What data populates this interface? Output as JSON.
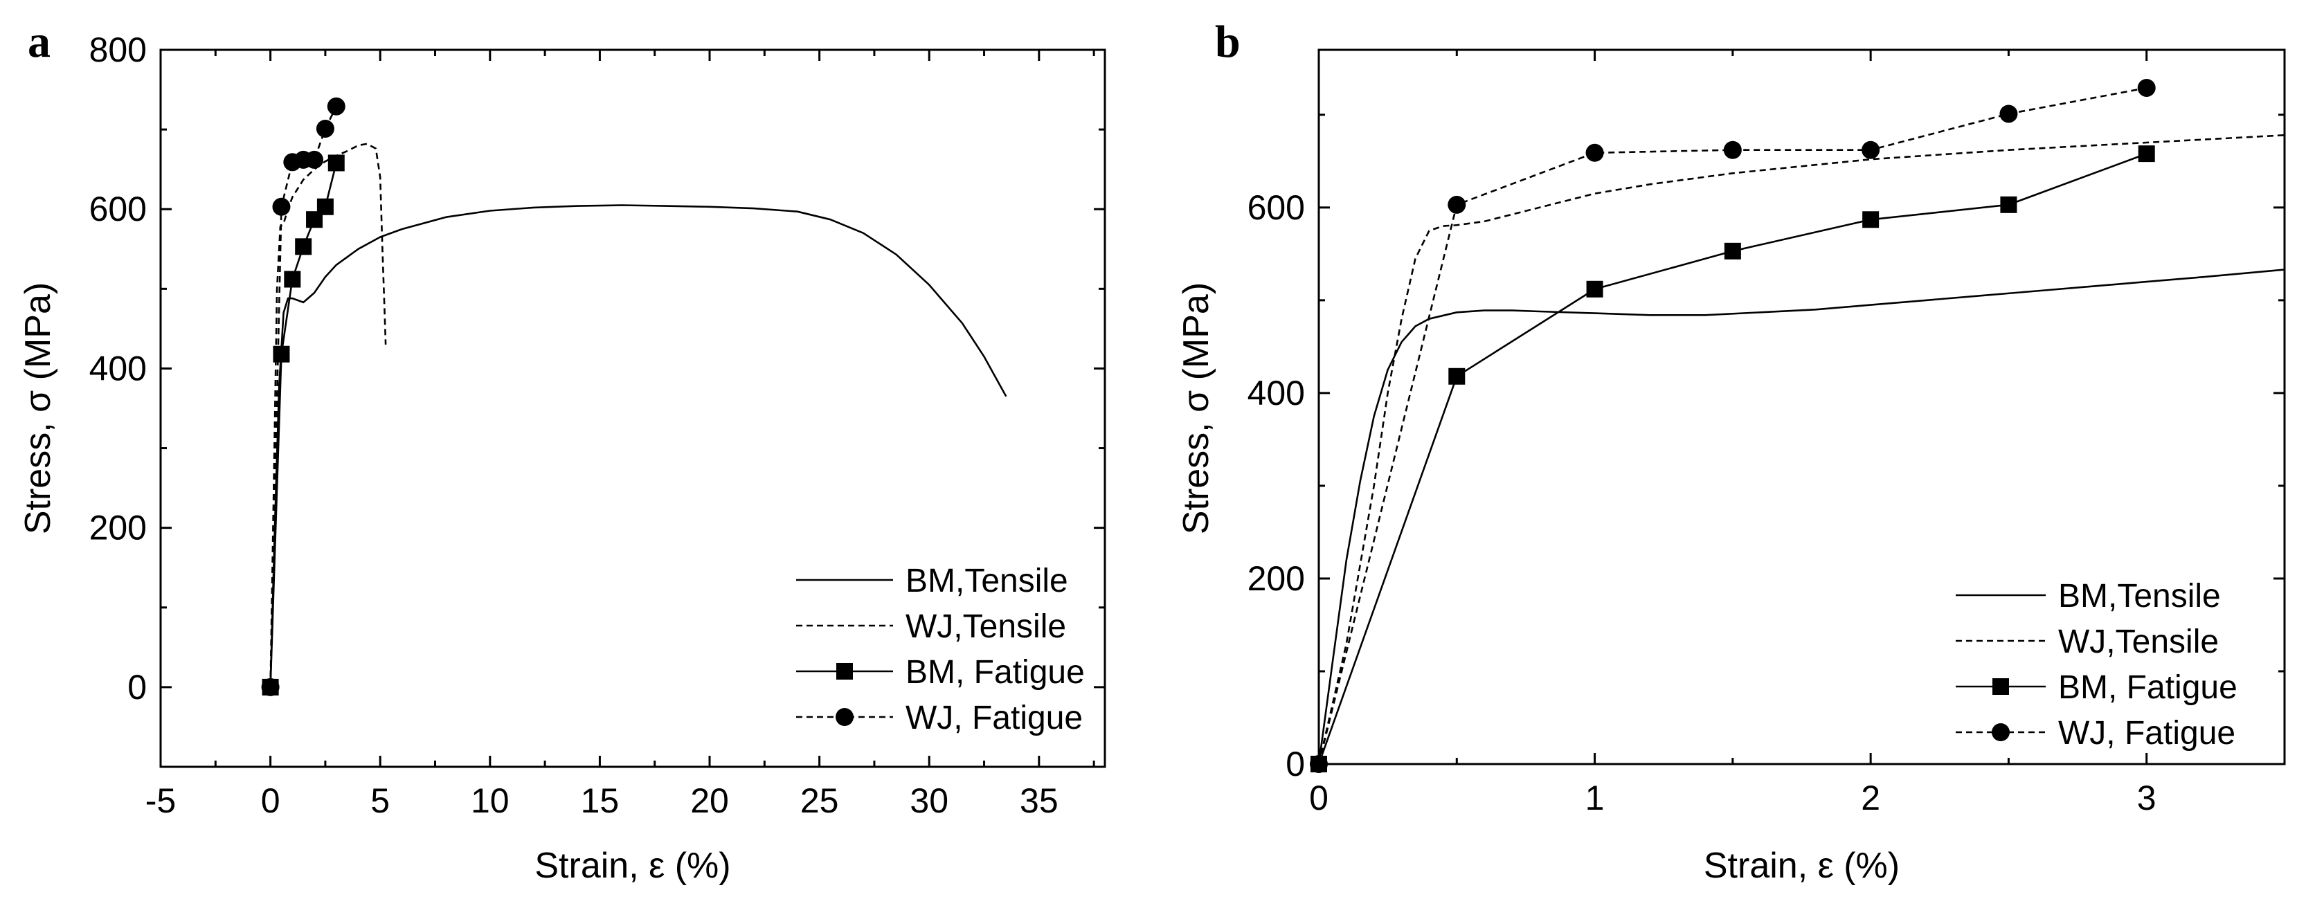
{
  "chart_data": [
    {
      "panel": "a",
      "type": "line",
      "title": "",
      "xlabel": "Strain, ε (%)",
      "ylabel": "Stress, σ (MPa)",
      "xlim": [
        -5,
        38
      ],
      "ylim": [
        -100,
        800
      ],
      "xticks": [
        -5,
        0,
        5,
        10,
        15,
        20,
        25,
        30,
        35
      ],
      "yticks": [
        0,
        200,
        400,
        600,
        800
      ],
      "legend": [
        "BM,Tensile",
        "WJ,Tensile",
        "BM, Fatigue",
        "WJ, Fatigue"
      ],
      "legend_position": "bottom-right",
      "series": [
        {
          "name": "BM,Tensile",
          "style": "solid",
          "marker": "none",
          "x": [
            0,
            0.2,
            0.4,
            0.6,
            0.8,
            1.0,
            1.2,
            1.5,
            2.0,
            2.5,
            3,
            4,
            5,
            6,
            8,
            10,
            12,
            14,
            16,
            18,
            20,
            22,
            24,
            25.5,
            27,
            28.5,
            30,
            31.5,
            32.5,
            33.5
          ],
          "y": [
            0,
            200,
            380,
            470,
            488,
            488,
            486,
            483,
            495,
            515,
            530,
            550,
            565,
            575,
            590,
            598,
            602,
            604,
            605,
            604,
            603,
            601,
            597,
            587,
            570,
            543,
            505,
            457,
            415,
            365
          ]
        },
        {
          "name": "WJ,Tensile",
          "style": "dashed",
          "marker": "none",
          "x": [
            0,
            0.15,
            0.3,
            0.45,
            0.6,
            0.8,
            1.0,
            1.5,
            2.0,
            2.5,
            3.0,
            3.5,
            4.0,
            4.4,
            4.8,
            5.0,
            5.1,
            5.2,
            5.25
          ],
          "y": [
            0,
            250,
            500,
            578,
            582,
            600,
            615,
            637,
            650,
            660,
            667,
            673,
            680,
            682,
            676,
            640,
            550,
            470,
            430
          ]
        },
        {
          "name": "BM, Fatigue",
          "style": "solid",
          "marker": "square",
          "x": [
            0,
            0.5,
            1.0,
            1.5,
            2.0,
            2.5,
            3.0
          ],
          "y": [
            0,
            418,
            512,
            553,
            587,
            603,
            658
          ]
        },
        {
          "name": "WJ, Fatigue",
          "style": "dashed",
          "marker": "circle",
          "x": [
            0,
            0.5,
            1.0,
            1.5,
            2.0,
            2.5,
            3.0
          ],
          "y": [
            0,
            603,
            659,
            662,
            662,
            701,
            729
          ]
        }
      ]
    },
    {
      "panel": "b",
      "type": "line",
      "title": "",
      "xlabel": "Strain, ε (%)",
      "ylabel": "Stress, σ (MPa)",
      "xlim": [
        0,
        3.5
      ],
      "ylim": [
        0,
        770
      ],
      "xticks": [
        0,
        1,
        2,
        3
      ],
      "yticks": [
        0,
        200,
        400,
        600
      ],
      "legend": [
        "BM,Tensile",
        "WJ,Tensile",
        "BM, Fatigue",
        "WJ, Fatigue"
      ],
      "legend_position": "bottom-right",
      "series": [
        {
          "name": "BM,Tensile",
          "style": "solid",
          "marker": "none",
          "x": [
            0,
            0.05,
            0.1,
            0.15,
            0.2,
            0.25,
            0.3,
            0.35,
            0.4,
            0.5,
            0.6,
            0.7,
            0.8,
            1.0,
            1.2,
            1.4,
            1.6,
            1.8,
            2.0,
            2.2,
            2.4,
            2.6,
            2.8,
            3.0,
            3.2,
            3.5
          ],
          "y": [
            0,
            110,
            220,
            305,
            375,
            425,
            455,
            472,
            480,
            487,
            489,
            489,
            488,
            486,
            484,
            484,
            487,
            490,
            495,
            500,
            505,
            510,
            515,
            520,
            525,
            533
          ]
        },
        {
          "name": "WJ,Tensile",
          "style": "dashed",
          "marker": "none",
          "x": [
            0,
            0.1,
            0.2,
            0.25,
            0.3,
            0.35,
            0.4,
            0.45,
            0.5,
            0.6,
            0.8,
            1.0,
            1.2,
            1.5,
            2.0,
            2.5,
            3.0,
            3.5
          ],
          "y": [
            0,
            130,
            300,
            400,
            480,
            545,
            575,
            580,
            581,
            585,
            600,
            615,
            625,
            637,
            652,
            662,
            670,
            678
          ]
        },
        {
          "name": "BM, Fatigue",
          "style": "solid",
          "marker": "square",
          "x": [
            0,
            0.5,
            1.0,
            1.5,
            2.0,
            2.5,
            3.0
          ],
          "y": [
            0,
            418,
            512,
            553,
            587,
            603,
            658
          ]
        },
        {
          "name": "WJ, Fatigue",
          "style": "dashed",
          "marker": "circle",
          "x": [
            0,
            0.5,
            1.0,
            1.5,
            2.0,
            2.5,
            3.0
          ],
          "y": [
            0,
            603,
            659,
            662,
            662,
            701,
            729
          ]
        }
      ]
    }
  ]
}
